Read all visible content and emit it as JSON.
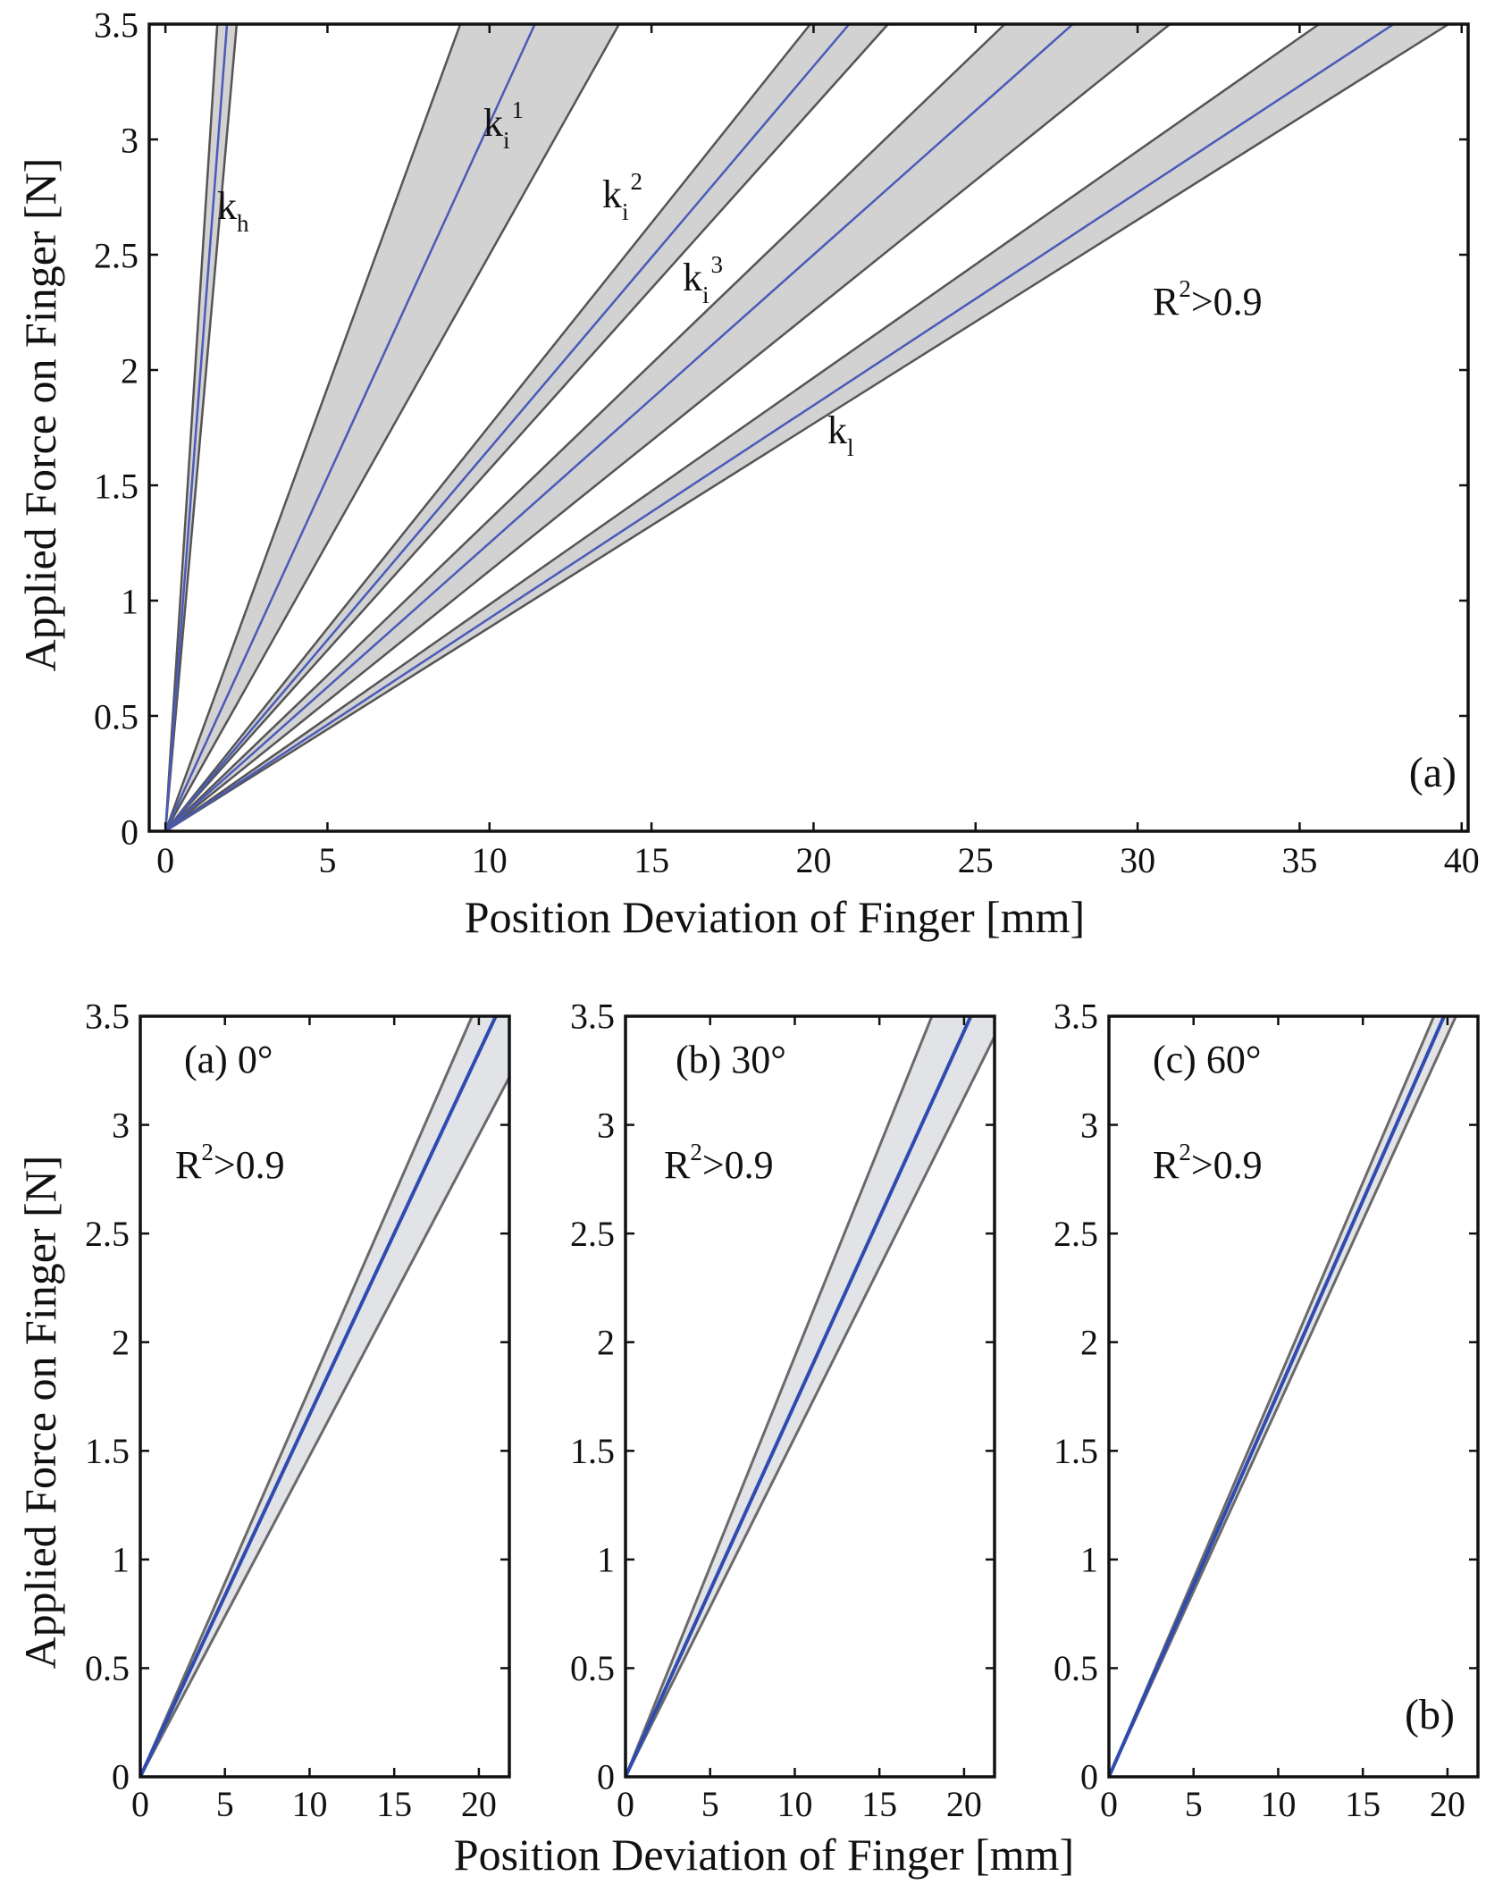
{
  "chart_data": [
    {
      "type": "line",
      "panel_tag": "(a)",
      "xlabel": "Position Deviation of Finger [mm]",
      "ylabel": "Applied Force on Finger [N]",
      "xlim": [
        -0.5,
        40.2
      ],
      "ylim": [
        0,
        3.5
      ],
      "xticks": [
        0,
        5,
        10,
        15,
        20,
        25,
        30,
        35,
        40
      ],
      "yticks": [
        0,
        0.5,
        1,
        1.5,
        2,
        2.5,
        3,
        3.5
      ],
      "grid": false,
      "annotation": {
        "base": "R",
        "sup": "2",
        "rest": ">0.9"
      },
      "colors": {
        "fit_line": "#4a5ab8",
        "band_fill": "#d2d2d2",
        "band_edge": "#555555"
      },
      "series": [
        {
          "name": "k_h",
          "label_base": "k",
          "label_sub": "h",
          "label_sup": "",
          "mean_x_at_ymax": 1.9,
          "band_x_at_ymax": [
            1.6,
            2.2
          ]
        },
        {
          "name": "k_i^1",
          "label_base": "k",
          "label_sub": "i",
          "label_sup": "1",
          "mean_x_at_ymax": 11.4,
          "band_x_at_ymax": [
            9.1,
            14.0
          ]
        },
        {
          "name": "k_i^2",
          "label_base": "k",
          "label_sub": "i",
          "label_sup": "2",
          "mean_x_at_ymax": 21.1,
          "band_x_at_ymax": [
            19.9,
            22.3
          ]
        },
        {
          "name": "k_i^3",
          "label_base": "k",
          "label_sub": "i",
          "label_sup": "3",
          "mean_x_at_ymax": 28.0,
          "band_x_at_ymax": [
            25.9,
            31.0
          ]
        },
        {
          "name": "k_l",
          "label_base": "k",
          "label_sub": "l",
          "label_sup": "",
          "mean_x_at_ymax": 37.9,
          "band_x_at_ymax": [
            35.6,
            39.6
          ]
        }
      ]
    },
    {
      "type": "line",
      "panel_title": "(a) 0°",
      "xlim": [
        0,
        21.8
      ],
      "ylim": [
        0,
        3.5
      ],
      "xticks": [
        0,
        5,
        10,
        15,
        20
      ],
      "yticks": [
        0,
        0.5,
        1,
        1.5,
        2,
        2.5,
        3,
        3.5
      ],
      "annotation": {
        "base": "R",
        "sup": "2",
        "rest": ">0.9"
      },
      "mean_x_at_ymax": 21.0,
      "band_x_at_ymax": [
        19.6,
        23.7
      ]
    },
    {
      "type": "line",
      "panel_title": "(b) 30°",
      "xlim": [
        0,
        21.8
      ],
      "ylim": [
        0,
        3.5
      ],
      "xticks": [
        0,
        5,
        10,
        15,
        20
      ],
      "yticks": [
        0,
        0.5,
        1,
        1.5,
        2,
        2.5,
        3,
        3.5
      ],
      "annotation": {
        "base": "R",
        "sup": "2",
        "rest": ">0.9"
      },
      "mean_x_at_ymax": 20.4,
      "band_x_at_ymax": [
        18.1,
        22.4
      ]
    },
    {
      "type": "line",
      "panel_title": "(c) 60°",
      "panel_tag": "(b)",
      "xlim": [
        0,
        21.8
      ],
      "ylim": [
        0,
        3.5
      ],
      "xticks": [
        0,
        5,
        10,
        15,
        20
      ],
      "yticks": [
        0,
        0.5,
        1,
        1.5,
        2,
        2.5,
        3,
        3.5
      ],
      "annotation": {
        "base": "R",
        "sup": "2",
        "rest": ">0.9"
      },
      "mean_x_at_ymax": 19.8,
      "band_x_at_ymax": [
        19.2,
        20.5
      ]
    }
  ],
  "bottom_figure": {
    "xlabel": "Position Deviation of Finger [mm]",
    "ylabel": "Applied Force on Finger [N]"
  }
}
